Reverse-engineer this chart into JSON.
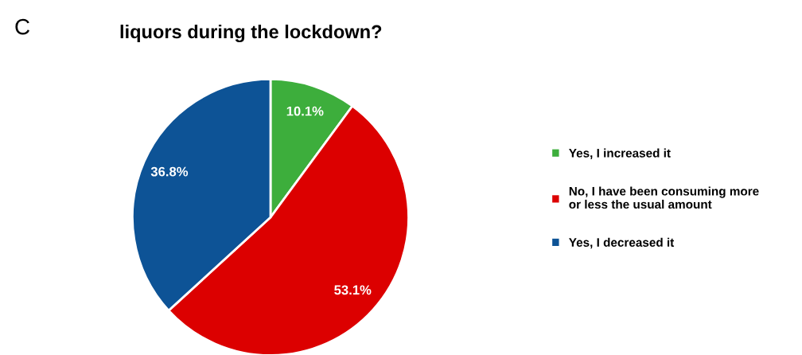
{
  "chart_data": {
    "type": "pie",
    "title": "liquors during the lockdown?",
    "annotations": [
      "C"
    ],
    "categories": [
      "Yes, I increased it",
      "No, I have been consuming more\nor less the usual amount",
      "Yes, I decreased it"
    ],
    "values": [
      10.1,
      53.1,
      36.8
    ],
    "colors": [
      "#3dae3c",
      "#dc0000",
      "#0d5396"
    ],
    "value_labels": [
      "10.1%",
      "53.1%",
      "36.8%"
    ],
    "legend": "right"
  }
}
